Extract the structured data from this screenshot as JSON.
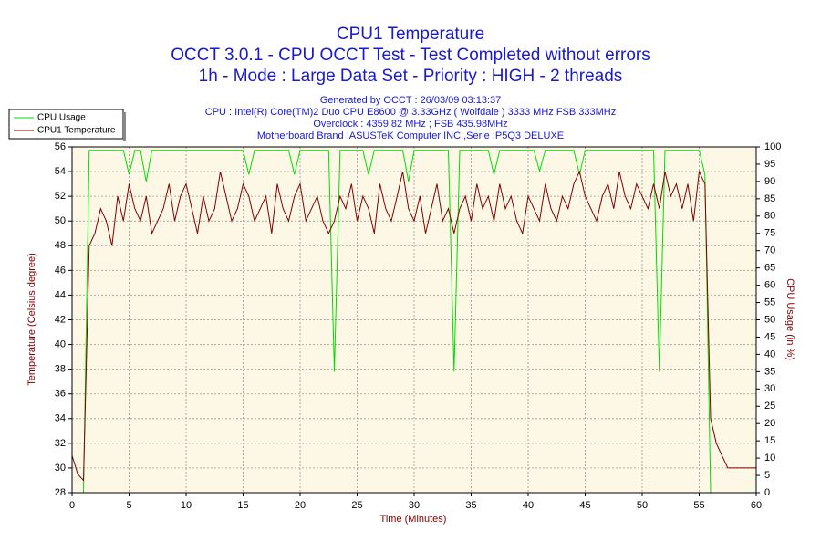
{
  "chart_data": {
    "type": "line",
    "title": "CPU1 Temperature",
    "subtitle": [
      "OCCT 3.0.1 - CPU OCCT Test - Test Completed without errors",
      "1h - Mode : Large Data Set - Priority : HIGH - 2 threads"
    ],
    "info": [
      "Generated by OCCT : 26/03/09 03:13:37",
      "CPU : Intel(R) Core(TM)2 Duo CPU E8600 @ 3.33GHz ( Wolfdale ) 3333 MHz FSB 333MHz",
      "Overclock : 4359.82 MHz ; FSB 435.98MHz",
      "Motherboard Brand :ASUSTeK Computer INC.,Serie :P5Q3 DELUXE"
    ],
    "xlabel": "Time (Minutes)",
    "ylabel": "Temperature (Celsius degree)",
    "y2label": "CPU Usage (in %)",
    "xlim": [
      0,
      60
    ],
    "xticks": [
      0,
      5,
      10,
      15,
      20,
      25,
      30,
      35,
      40,
      45,
      50,
      55,
      60
    ],
    "ylim": [
      28,
      56
    ],
    "yticks": [
      28,
      30,
      32,
      34,
      36,
      38,
      40,
      42,
      44,
      46,
      48,
      50,
      52,
      54,
      56
    ],
    "y2lim": [
      0,
      100
    ],
    "y2ticks": [
      0,
      5,
      10,
      15,
      20,
      25,
      30,
      35,
      40,
      45,
      50,
      55,
      60,
      65,
      70,
      75,
      80,
      85,
      90,
      95,
      100
    ],
    "grid": true,
    "legend": "top-left",
    "x": [
      0,
      0.5,
      1,
      1.5,
      2,
      2.5,
      3,
      3.5,
      4,
      4.5,
      5,
      5.5,
      6,
      6.5,
      7,
      7.5,
      8,
      8.5,
      9,
      9.5,
      10,
      10.5,
      11,
      11.5,
      12,
      12.5,
      13,
      13.5,
      14,
      14.5,
      15,
      15.5,
      16,
      16.5,
      17,
      17.5,
      18,
      18.5,
      19,
      19.5,
      20,
      20.5,
      21,
      21.5,
      22,
      22.5,
      23,
      23.5,
      24,
      24.5,
      25,
      25.5,
      26,
      26.5,
      27,
      27.5,
      28,
      28.5,
      29,
      29.5,
      30,
      30.5,
      31,
      31.5,
      32,
      32.5,
      33,
      33.5,
      34,
      34.5,
      35,
      35.5,
      36,
      36.5,
      37,
      37.5,
      38,
      38.5,
      39,
      39.5,
      40,
      40.5,
      41,
      41.5,
      42,
      42.5,
      43,
      43.5,
      44,
      44.5,
      45,
      45.5,
      46,
      46.5,
      47,
      47.5,
      48,
      48.5,
      49,
      49.5,
      50,
      50.5,
      51,
      51.5,
      52,
      52.5,
      53,
      53.5,
      54,
      54.5,
      55,
      55.5,
      56,
      56.5,
      57,
      57.5,
      58,
      58.5,
      59,
      59.5,
      60
    ],
    "series": [
      {
        "name": "CPU Usage",
        "color": "#00dd00",
        "axis": "y2",
        "values": [
          0,
          0,
          0,
          99,
          99,
          99,
          99,
          99,
          99,
          99,
          92,
          99,
          99,
          90,
          99,
          99,
          99,
          99,
          99,
          99,
          99,
          99,
          99,
          99,
          99,
          99,
          99,
          99,
          99,
          99,
          99,
          92,
          99,
          99,
          99,
          99,
          99,
          99,
          99,
          92,
          99,
          99,
          99,
          99,
          99,
          99,
          35,
          99,
          99,
          99,
          99,
          99,
          92,
          99,
          99,
          99,
          99,
          99,
          99,
          90,
          99,
          99,
          99,
          99,
          99,
          99,
          99,
          35,
          99,
          99,
          99,
          99,
          99,
          99,
          92,
          99,
          99,
          99,
          99,
          99,
          99,
          99,
          93,
          99,
          99,
          99,
          99,
          99,
          99,
          92,
          99,
          99,
          99,
          99,
          99,
          99,
          99,
          99,
          99,
          99,
          99,
          99,
          99,
          35,
          99,
          99,
          99,
          99,
          99,
          99,
          99,
          92,
          0,
          0,
          0,
          0,
          0,
          0,
          0,
          0,
          0
        ]
      },
      {
        "name": "CPU1 Temperature",
        "color": "#800000",
        "axis": "y",
        "values": [
          31,
          29.5,
          29,
          48,
          49,
          51,
          50,
          48,
          52,
          50,
          53,
          51,
          50,
          52,
          49,
          50,
          51,
          53,
          50,
          52,
          53,
          51,
          49,
          52,
          50,
          51,
          54,
          52,
          50,
          51,
          53,
          52,
          50,
          51,
          52,
          49,
          53,
          51,
          50,
          52,
          53,
          50,
          51,
          52,
          50,
          49,
          50,
          52,
          51,
          53,
          50,
          52,
          51,
          49,
          53,
          51,
          50,
          52,
          54,
          51,
          50,
          52,
          49,
          51,
          53,
          50,
          51,
          49,
          51,
          52,
          50,
          53,
          51,
          52,
          50,
          53,
          51,
          52,
          50,
          49,
          52,
          51,
          50,
          53,
          51,
          50,
          52,
          51,
          53,
          54,
          52,
          51,
          50,
          52,
          53,
          51,
          54,
          52,
          51,
          53,
          52,
          51,
          53,
          51,
          54,
          52,
          53,
          51,
          53,
          50,
          54,
          53,
          34,
          32,
          31,
          30,
          30,
          30,
          30,
          30,
          30
        ]
      }
    ]
  }
}
